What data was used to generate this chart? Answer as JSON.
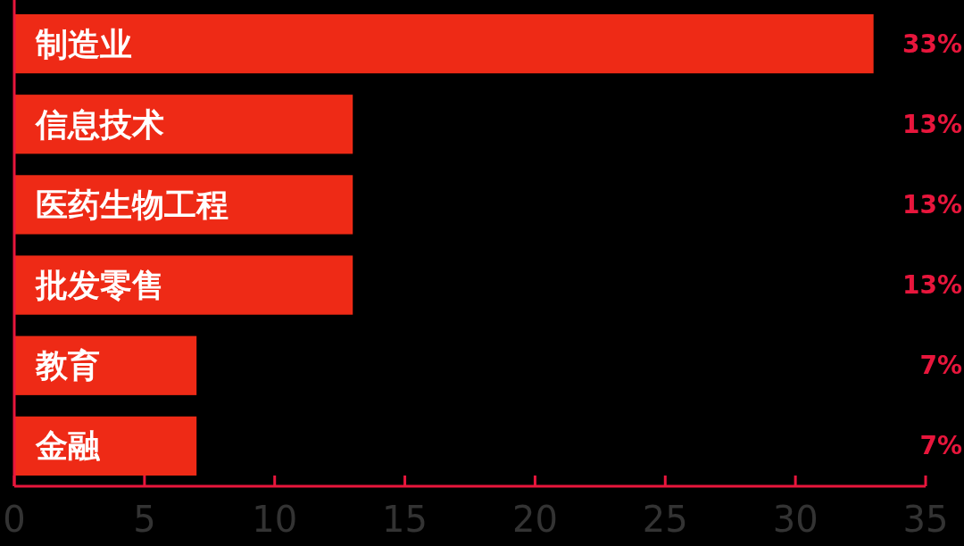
{
  "chart_data": {
    "type": "bar",
    "orientation": "horizontal",
    "categories": [
      "制造业",
      "信息技术",
      "医药生物工程",
      "批发零售",
      "教育",
      "金融"
    ],
    "values": [
      33,
      13,
      13,
      13,
      7,
      7
    ],
    "value_labels": [
      "33%",
      "13%",
      "13%",
      "13%",
      "7%",
      "7%"
    ],
    "color": "#ee2a16",
    "xlim": [
      0,
      35
    ],
    "xticks": [
      0,
      5,
      10,
      15,
      20,
      25,
      30,
      35
    ],
    "grid": false
  }
}
